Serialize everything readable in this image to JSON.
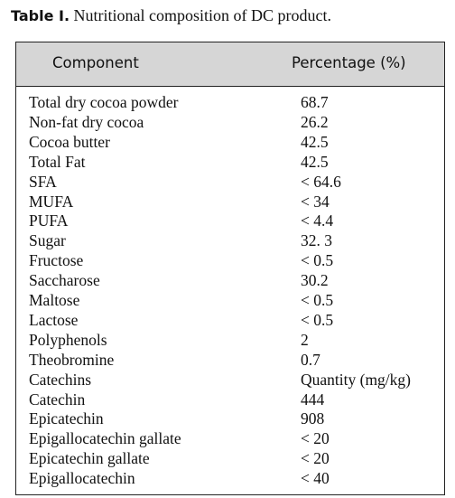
{
  "caption": {
    "label": "Table I.",
    "text": "Nutritional composition of DC product."
  },
  "table": {
    "header": [
      "Component",
      "Percentage (%)"
    ],
    "rows": [
      [
        "Total dry cocoa powder",
        "68.7"
      ],
      [
        "Non-fat dry cocoa",
        "26.2"
      ],
      [
        "Cocoa butter",
        "42.5"
      ],
      [
        "Total Fat",
        "42.5"
      ],
      [
        "SFA",
        "< 64.6"
      ],
      [
        "MUFA",
        "< 34"
      ],
      [
        "PUFA",
        "< 4.4"
      ],
      [
        "Sugar",
        "32. 3"
      ],
      [
        "Fructose",
        "< 0.5"
      ],
      [
        "Saccharose",
        "30.2"
      ],
      [
        "Maltose",
        "< 0.5"
      ],
      [
        "Lactose",
        "< 0.5"
      ],
      [
        "Polyphenols",
        "2"
      ],
      [
        "Theobromine",
        "0.7"
      ],
      [
        "Catechins",
        "Quantity (mg/kg)"
      ],
      [
        "Catechin",
        "444"
      ],
      [
        "Epicatechin",
        "908"
      ],
      [
        "Epigallocatechin gallate",
        "< 20"
      ],
      [
        "Epicatechin gallate",
        "< 20"
      ],
      [
        "Epigallocatechin",
        "< 40"
      ]
    ]
  }
}
